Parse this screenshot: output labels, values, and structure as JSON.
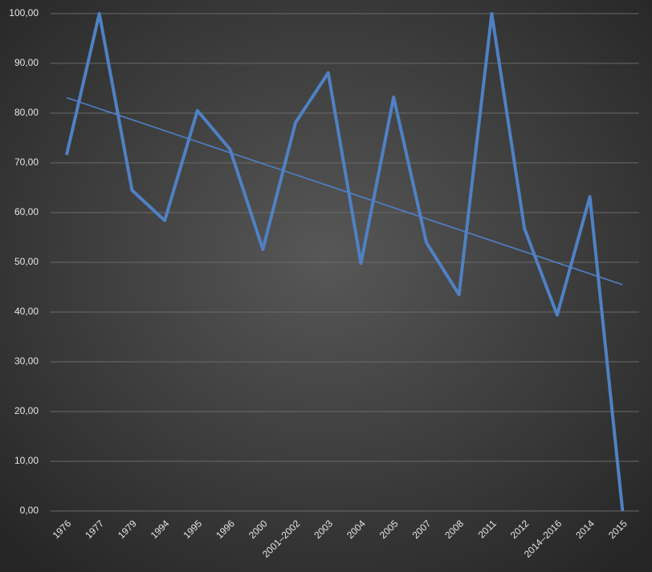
{
  "chart_data": {
    "type": "line",
    "categories": [
      "1976",
      "1977",
      "1979",
      "1994",
      "1995",
      "1996",
      "2000",
      "2001–2002",
      "2003",
      "2004",
      "2005",
      "2007",
      "2008",
      "2011",
      "2012",
      "2014–2016",
      "2014",
      "2015"
    ],
    "values": [
      71.6,
      100,
      64.5,
      58.4,
      80.5,
      72.7,
      52.6,
      78.1,
      88.1,
      49.8,
      83.2,
      54.0,
      43.5,
      100,
      56.8,
      39.4,
      63.2,
      0
    ],
    "color": "#4f81c4",
    "trendline": {
      "values": [
        83.1,
        45.5
      ],
      "color": "#4f81c4"
    },
    "ylim": [
      0,
      100
    ],
    "yticks": [
      {
        "value": 0,
        "label": "0,00"
      },
      {
        "value": 10,
        "label": "10,00"
      },
      {
        "value": 20,
        "label": "20,00"
      },
      {
        "value": 30,
        "label": "30,00"
      },
      {
        "value": 40,
        "label": "40,00"
      },
      {
        "value": 50,
        "label": "50,00"
      },
      {
        "value": 60,
        "label": "60,00"
      },
      {
        "value": 70,
        "label": "70,00"
      },
      {
        "value": 80,
        "label": "80,00"
      },
      {
        "value": 90,
        "label": "90,00"
      },
      {
        "value": 100,
        "label": "100,00"
      }
    ],
    "grid": true
  }
}
